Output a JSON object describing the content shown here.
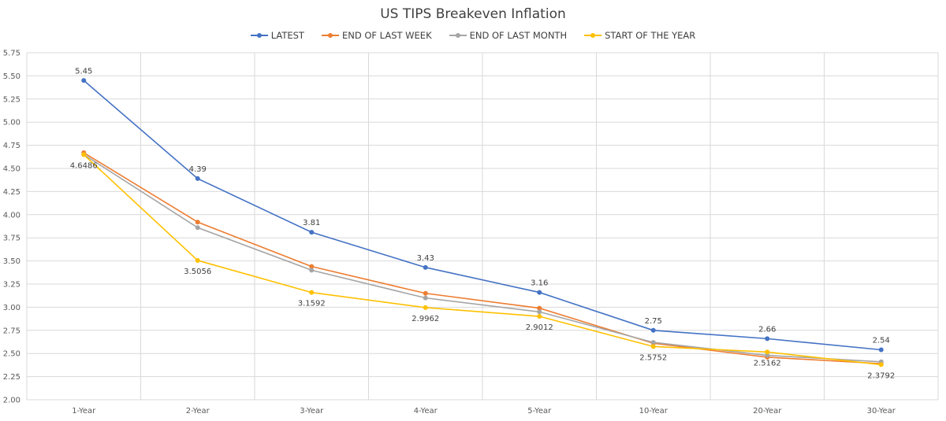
{
  "chart_data": {
    "type": "line",
    "title": "US TIPS Breakeven Inflation",
    "categories": [
      "1-Year",
      "2-Year",
      "3-Year",
      "4-Year",
      "5-Year",
      "10-Year",
      "20-Year",
      "30-Year"
    ],
    "ylim": [
      2.0,
      5.75
    ],
    "yticks": [
      "2.00",
      "2.25",
      "2.50",
      "2.75",
      "3.00",
      "3.25",
      "3.50",
      "3.75",
      "4.00",
      "4.25",
      "4.50",
      "4.75",
      "5.00",
      "5.25",
      "5.50",
      "5.75"
    ],
    "grid": true,
    "legend_position": "top",
    "series": [
      {
        "name": "LATEST",
        "color": "#4472C4",
        "values": [
          5.45,
          4.39,
          3.81,
          3.43,
          3.16,
          2.75,
          2.66,
          2.54
        ],
        "labels": [
          "5.45",
          "4.39",
          "3.81",
          "3.43",
          "3.16",
          "2.75",
          "2.66",
          "2.54"
        ]
      },
      {
        "name": "END OF LAST WEEK",
        "color": "#ED7D31",
        "values": [
          4.67,
          3.92,
          3.44,
          3.15,
          2.99,
          2.61,
          2.46,
          2.39
        ],
        "labels": []
      },
      {
        "name": "END OF LAST MONTH",
        "color": "#A5A5A5",
        "values": [
          4.65,
          3.86,
          3.4,
          3.1,
          2.95,
          2.62,
          2.48,
          2.41
        ],
        "labels": []
      },
      {
        "name": "START OF THE YEAR",
        "color": "#FFC000",
        "values": [
          4.6486,
          3.5056,
          3.1592,
          2.9962,
          2.9012,
          2.5752,
          2.5162,
          2.3792
        ],
        "labels": [
          "4.6486",
          "3.5056",
          "3.1592",
          "2.9962",
          "2.9012",
          "2.5752",
          "2.5162",
          "2.3792"
        ]
      }
    ]
  }
}
